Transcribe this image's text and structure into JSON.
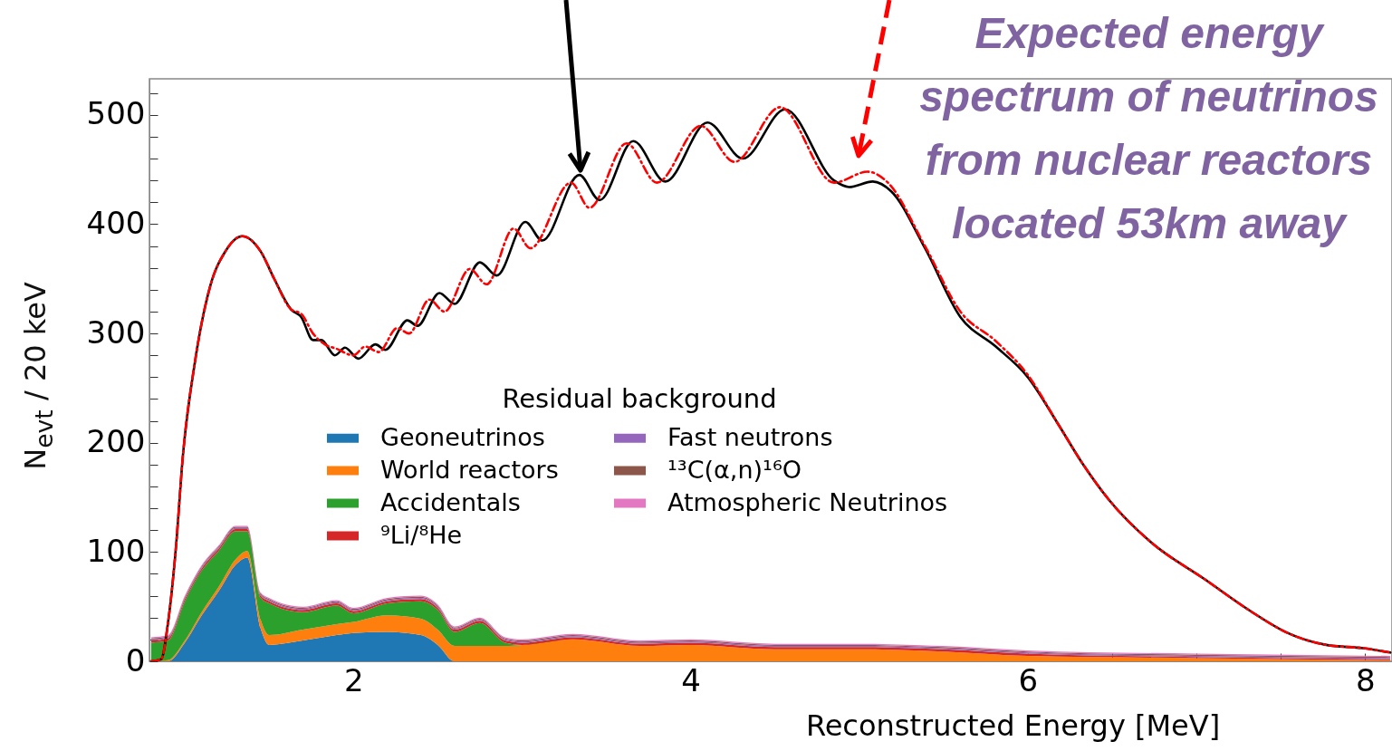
{
  "chart_data": {
    "type": "area",
    "stacked": true,
    "xlabel": "Reconstructed Energy [MeV]",
    "ylabel": "N$_{evt}$ / 20 keV",
    "legend_title": "Residual background",
    "legend": "bottom",
    "annotations": [
      "Expected energy spectrum of neutrinos from nuclear reactors located 53km away"
    ],
    "xlim": [
      0.79,
      8.16
    ],
    "ylim": [
      0,
      533
    ],
    "xticks": [
      {
        "value": 1,
        "label": null
      },
      {
        "value": 1.5,
        "label": null
      },
      2,
      {
        "value": 2.5,
        "label": null
      },
      {
        "value": 3,
        "label": null
      },
      {
        "value": 3.5,
        "label": null
      },
      4,
      {
        "value": 4.5,
        "label": null
      },
      {
        "value": 5,
        "label": null
      },
      {
        "value": 5.5,
        "label": null
      },
      6,
      {
        "value": 6.5,
        "label": null
      },
      {
        "value": 7,
        "label": null
      },
      {
        "value": 7.5,
        "label": null
      },
      8
    ],
    "yticks": [
      0,
      {
        "value": 20,
        "label": null
      },
      {
        "value": 40,
        "label": null
      },
      {
        "value": 60,
        "label": null
      },
      {
        "value": 80,
        "label": null
      },
      100,
      {
        "value": 120,
        "label": null
      },
      {
        "value": 140,
        "label": null
      },
      {
        "value": 160,
        "label": null
      },
      {
        "value": 180,
        "label": null
      },
      200,
      {
        "value": 220,
        "label": null
      },
      {
        "value": 240,
        "label": null
      },
      {
        "value": 260,
        "label": null
      },
      {
        "value": 280,
        "label": null
      },
      300,
      {
        "value": 320,
        "label": null
      },
      {
        "value": 340,
        "label": null
      },
      {
        "value": 360,
        "label": null
      },
      {
        "value": 380,
        "label": null
      },
      400,
      {
        "value": 420,
        "label": null
      },
      {
        "value": 440,
        "label": null
      },
      {
        "value": 460,
        "label": null
      },
      {
        "value": 480,
        "label": null
      },
      500,
      {
        "value": 520,
        "label": null
      }
    ],
    "x": [
      0.8,
      0.9,
      1.0,
      1.1,
      1.2,
      1.3,
      1.37,
      1.45,
      1.5,
      1.7,
      1.9,
      2.0,
      2.2,
      2.4,
      2.5,
      2.6,
      2.75,
      2.9,
      3.0,
      3.3,
      3.7,
      4.0,
      4.5,
      5.0,
      5.5,
      6.0,
      7.0,
      8.15
    ],
    "series": [
      {
        "name": "Geoneutrinos",
        "color": "#1f77b4",
        "values": [
          0,
          0,
          17,
          42,
          64,
          88,
          95,
          30,
          15,
          19,
          24,
          26,
          27,
          24,
          15,
          0,
          0,
          0,
          0,
          0,
          0,
          0,
          0,
          0,
          0,
          0,
          0,
          0
        ]
      },
      {
        "name": "World reactors",
        "color": "#ff7f0e",
        "values": [
          0,
          1,
          2,
          3,
          4,
          5,
          6,
          8,
          9,
          10,
          10,
          10,
          15,
          15,
          14,
          14,
          14,
          14,
          15,
          20,
          14,
          15,
          11,
          11,
          9,
          5,
          3,
          1
        ]
      },
      {
        "name": "Accidentals",
        "color": "#2ca02c",
        "values": [
          17,
          18,
          36,
          38,
          33,
          26,
          18,
          20,
          29,
          16,
          17,
          8,
          11,
          16,
          18,
          13,
          21,
          3,
          0,
          0,
          0,
          0,
          0,
          0,
          0,
          0,
          0,
          0
        ]
      },
      {
        "name": "⁹Li/⁸He",
        "color": "#d62728",
        "values": [
          2,
          2,
          2,
          2,
          2,
          2,
          2,
          2,
          2,
          2,
          2,
          2,
          2,
          2,
          2,
          2,
          2,
          2,
          2,
          2,
          2,
          2,
          2,
          2,
          2,
          2,
          1,
          1
        ]
      },
      {
        "name": "Fast neutrons",
        "color": "#9467bd",
        "values": [
          1,
          1,
          1,
          1,
          1,
          1,
          1,
          1,
          1,
          1,
          1,
          1,
          1,
          1,
          1,
          1,
          1,
          1,
          1,
          1,
          1,
          1,
          1,
          1,
          1,
          1,
          1,
          1
        ]
      },
      {
        "name": "¹³C(α,n)¹⁶O",
        "color": "#8c564b",
        "values": [
          1,
          1,
          1,
          1,
          1,
          1,
          1,
          1,
          1,
          1,
          1,
          1,
          1,
          1,
          1,
          1,
          1,
          1,
          1,
          1,
          1,
          1,
          1,
          1,
          1,
          1,
          1,
          1
        ]
      },
      {
        "name": "Atmospheric Neutrinos",
        "color": "#e377c2",
        "values": [
          1,
          1,
          1,
          1,
          1,
          1,
          1,
          1,
          1,
          1,
          1,
          1,
          1,
          1,
          1,
          1,
          1,
          1,
          1,
          1,
          1,
          1,
          1,
          1,
          1,
          1,
          1,
          1
        ]
      },
      {
        "type": "line",
        "color": "#000000",
        "line_style": "solid",
        "x": [
          0.8,
          0.86,
          0.9,
          0.946,
          0.989,
          1.06,
          1.15,
          1.24,
          1.34,
          1.45,
          1.53,
          1.63,
          1.69,
          1.76,
          1.81,
          1.89,
          1.95,
          2.03,
          2.13,
          2.19,
          2.32,
          2.38,
          2.51,
          2.6,
          2.75,
          2.85,
          3.02,
          3.12,
          3.34,
          3.46,
          3.66,
          3.85,
          4.1,
          4.31,
          4.56,
          4.85,
          4.94,
          5.08,
          5.19,
          5.39,
          5.6,
          5.81,
          6.0,
          6.18,
          6.32,
          6.48,
          6.73,
          7.05,
          7.32,
          7.54,
          7.77,
          7.99,
          8.15
        ],
        "values": [
          0,
          2,
          35,
          102,
          189,
          274,
          343,
          375,
          389,
          375,
          350,
          322,
          315,
          294,
          294,
          280,
          287,
          277,
          290,
          285,
          312,
          307,
          337,
          327,
          365,
          353,
          402,
          385,
          445,
          422,
          476,
          439,
          493,
          460,
          505,
          440,
          434,
          439,
          430,
          378,
          315,
          288,
          260,
          217,
          182,
          148,
          109,
          75,
          46,
          26,
          15,
          12,
          8
        ]
      },
      {
        "type": "line",
        "color": "#ff0000",
        "line_style": "dashed",
        "x": [
          0.8,
          0.86,
          0.9,
          0.946,
          0.989,
          1.06,
          1.15,
          1.24,
          1.34,
          1.45,
          1.53,
          1.63,
          1.69,
          1.76,
          1.83,
          1.9,
          2.0,
          2.07,
          2.15,
          2.26,
          2.33,
          2.45,
          2.54,
          2.69,
          2.79,
          2.95,
          3.05,
          3.29,
          3.4,
          3.62,
          3.8,
          4.06,
          4.26,
          4.53,
          4.85,
          5.05,
          5.17,
          5.39,
          5.6,
          5.81,
          6.0,
          6.18,
          6.32,
          6.48,
          6.73,
          7.05,
          7.32,
          7.54,
          7.77,
          7.99,
          8.15
        ],
        "values": [
          0,
          2,
          35,
          102,
          189,
          274,
          343,
          375,
          389,
          375,
          350,
          322,
          318,
          300,
          290,
          286,
          280,
          288,
          283,
          305,
          300,
          331,
          320,
          359,
          345,
          396,
          378,
          438,
          415,
          474,
          438,
          490,
          457,
          507,
          438,
          448,
          438,
          380,
          320,
          293,
          262,
          217,
          182,
          148,
          109,
          75,
          46,
          26,
          15,
          12,
          8
        ]
      }
    ]
  }
}
